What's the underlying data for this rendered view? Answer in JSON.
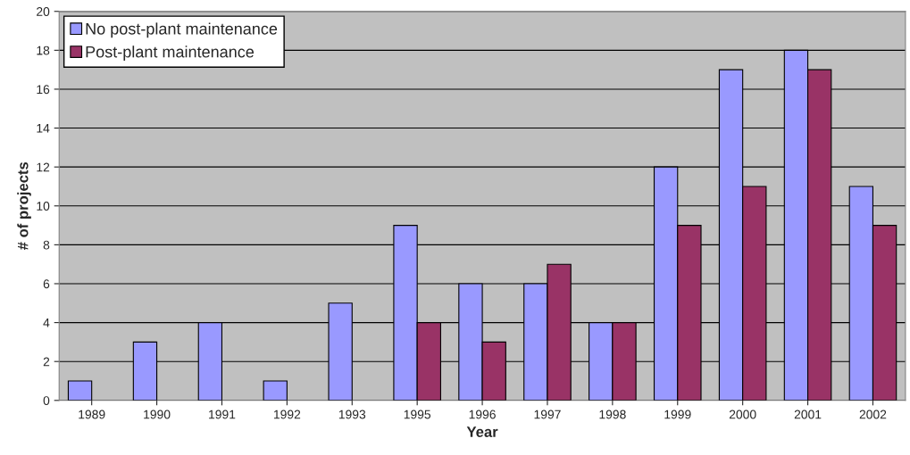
{
  "chart_data": {
    "type": "bar",
    "xlabel": "Year",
    "ylabel": "# of projects",
    "categories": [
      "1989",
      "1990",
      "1991",
      "1992",
      "1993",
      "1995",
      "1996",
      "1997",
      "1998",
      "1999",
      "2000",
      "2001",
      "2002"
    ],
    "series": [
      {
        "name": "No post-plant maintenance",
        "color": "#9999ff",
        "values": [
          1,
          3,
          4,
          1,
          5,
          9,
          6,
          6,
          4,
          12,
          17,
          18,
          11
        ]
      },
      {
        "name": "Post-plant maintenance",
        "color": "#993366",
        "values": [
          null,
          null,
          null,
          null,
          null,
          4,
          3,
          7,
          4,
          9,
          11,
          17,
          9
        ]
      }
    ],
    "ylim": [
      0,
      20
    ],
    "yticks": [
      0,
      2,
      4,
      6,
      8,
      10,
      12,
      14,
      16,
      18,
      20
    ],
    "grid": "y",
    "legend": "top left"
  }
}
